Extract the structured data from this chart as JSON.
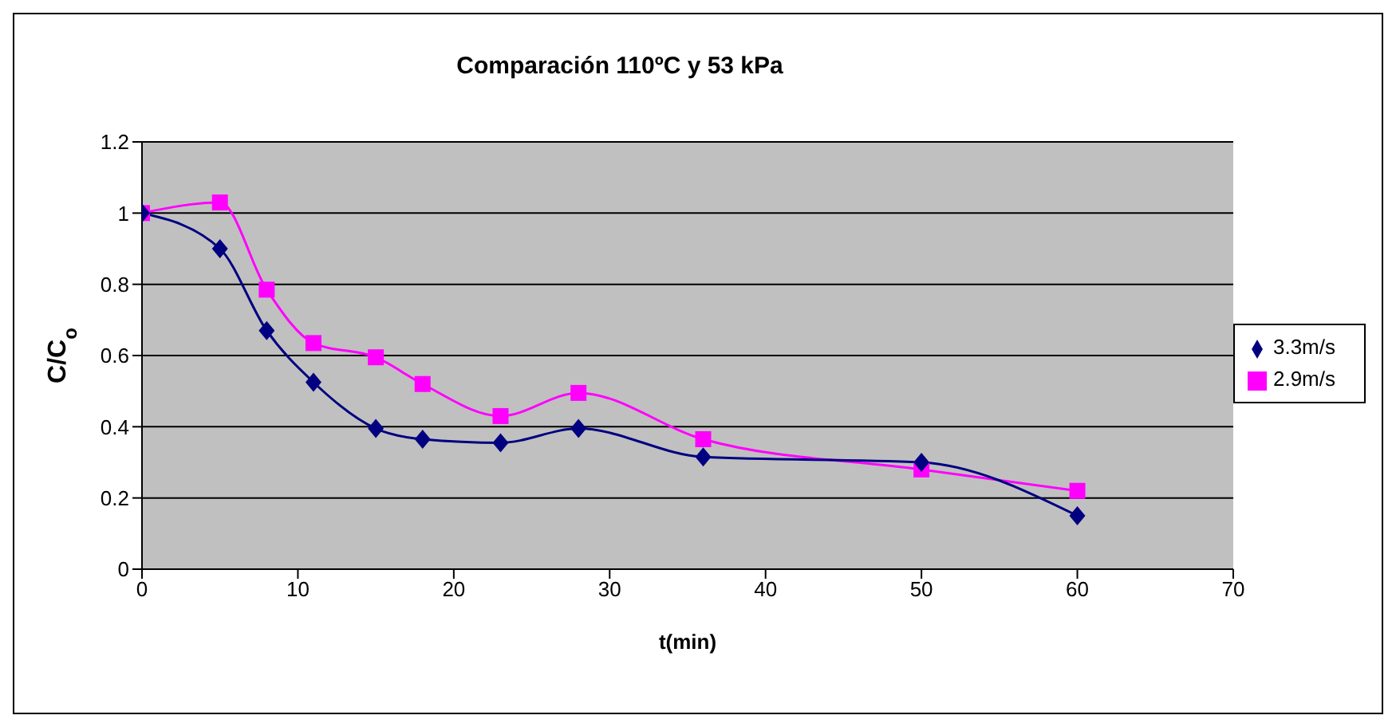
{
  "chart_data": {
    "type": "line",
    "title": "Comparación 110ºC y 53 kPa",
    "xlabel": "t(min)",
    "ylabel": "C/C$_{o}$",
    "x": [
      0,
      5,
      8,
      11,
      15,
      18,
      23,
      28,
      36,
      50,
      60
    ],
    "series": [
      {
        "name": "3.3m/s",
        "color": "#000080",
        "marker": "diamond",
        "values": [
          1,
          0.9,
          0.67,
          0.525,
          0.395,
          0.365,
          0.355,
          0.395,
          0.315,
          0.3,
          0.15
        ]
      },
      {
        "name": "2.9m/s",
        "color": "#ff00ff",
        "marker": "square",
        "values": [
          1,
          1.03,
          0.785,
          0.635,
          0.595,
          0.52,
          0.43,
          0.495,
          0.365,
          0.28,
          0.22
        ]
      }
    ],
    "xlim": [
      0,
      70
    ],
    "xticks": [
      0,
      10,
      20,
      30,
      40,
      50,
      60,
      70
    ],
    "ylim": [
      0,
      1.2
    ],
    "yticks": [
      0,
      0.2,
      0.4,
      0.6,
      0.8,
      1,
      1.2
    ],
    "grid": "y",
    "legend": "right"
  }
}
